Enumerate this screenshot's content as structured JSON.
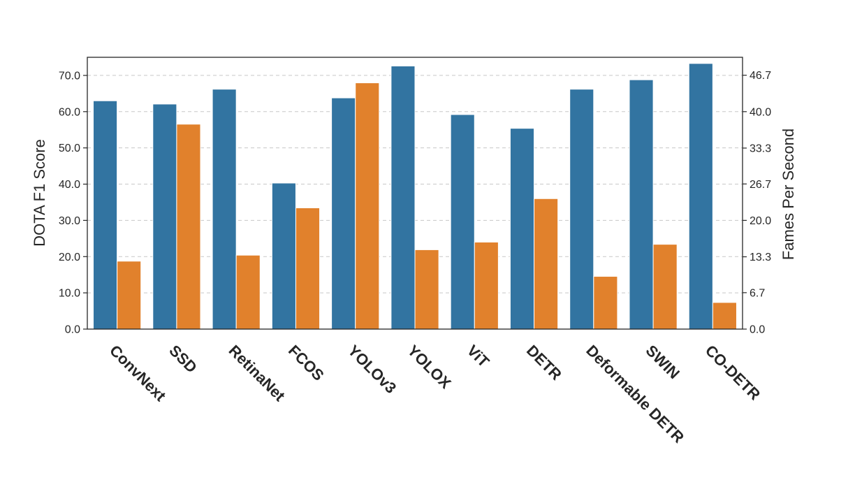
{
  "chart_data": {
    "type": "bar",
    "categories": [
      "ConvNext",
      "SSD",
      "RetinaNet",
      "FCOS",
      "YOLOv3",
      "YOLOX",
      "ViT",
      "DETR",
      "Deformable DETR",
      "SWIN",
      "CO-DETR"
    ],
    "series": [
      {
        "axis": "left",
        "color": "#3274a1",
        "values": [
          63.0,
          62.1,
          66.2,
          40.3,
          63.8,
          72.6,
          59.2,
          55.4,
          66.2,
          68.8,
          73.3
        ]
      },
      {
        "axis": "right",
        "color": "#e1812c",
        "values": [
          12.5,
          37.7,
          13.6,
          22.3,
          45.3,
          14.6,
          16.0,
          24.0,
          9.7,
          15.6,
          4.9
        ]
      }
    ],
    "ylabel": "DOTA F1 Score",
    "y2label": "Fames Per Second",
    "ylim": [
      0,
      75
    ],
    "y2lim": [
      0,
      50
    ],
    "yticks": [
      "0.0",
      "10.0",
      "20.0",
      "30.0",
      "40.0",
      "50.0",
      "60.0",
      "70.0"
    ],
    "y2ticks": [
      "0.0",
      "6.7",
      "13.3",
      "20.0",
      "26.7",
      "33.3",
      "40.0",
      "46.7"
    ],
    "grid": true,
    "legend": "none"
  }
}
